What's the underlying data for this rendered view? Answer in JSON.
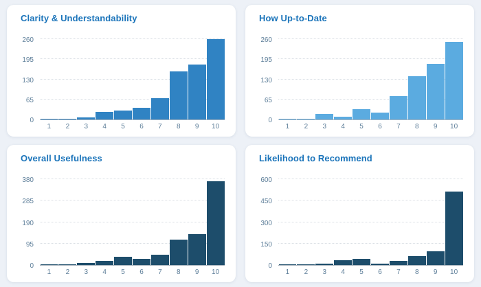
{
  "page": {
    "background_color": "#edf1f7",
    "card_color": "#ffffff",
    "title_color": "#1b74ba",
    "tick_label_color": "#5d7e99"
  },
  "chart_data": [
    {
      "type": "bar",
      "title": "Clarity & Understandability",
      "categories": [
        "1",
        "2",
        "3",
        "4",
        "5",
        "6",
        "7",
        "8",
        "9",
        "10"
      ],
      "values": [
        1,
        3,
        7,
        25,
        29,
        38,
        70,
        155,
        177,
        260
      ],
      "y_ticks": [
        0,
        65,
        130,
        195,
        260
      ],
      "ylim": [
        0,
        260
      ],
      "xlabel": "",
      "ylabel": "",
      "bar_color": "#3083c3",
      "grid": "horizontal-dotted",
      "legend": "none"
    },
    {
      "type": "bar",
      "title": "How Up-to-Date",
      "categories": [
        "1",
        "2",
        "3",
        "4",
        "5",
        "6",
        "7",
        "8",
        "9",
        "10"
      ],
      "values": [
        1,
        2,
        17,
        10,
        33,
        22,
        76,
        140,
        179,
        251
      ],
      "y_ticks": [
        0,
        65,
        130,
        195,
        260
      ],
      "ylim": [
        0,
        260
      ],
      "xlabel": "",
      "ylabel": "",
      "bar_color": "#5babe0",
      "grid": "horizontal-dotted",
      "legend": "none"
    },
    {
      "type": "bar",
      "title": "Overall Usefulness",
      "categories": [
        "1",
        "2",
        "3",
        "4",
        "5",
        "6",
        "7",
        "8",
        "9",
        "10"
      ],
      "values": [
        1,
        1,
        9,
        19,
        38,
        28,
        47,
        114,
        136,
        371
      ],
      "y_ticks": [
        0,
        95,
        190,
        285,
        380
      ],
      "ylim": [
        0,
        380
      ],
      "xlabel": "",
      "ylabel": "",
      "bar_color": "#1d4d6b",
      "grid": "horizontal-dotted",
      "legend": "none"
    },
    {
      "type": "bar",
      "title": "Likelihood to Recommend",
      "categories": [
        "1",
        "2",
        "3",
        "4",
        "5",
        "6",
        "7",
        "8",
        "9",
        "10"
      ],
      "values": [
        3,
        2,
        10,
        34,
        44,
        12,
        30,
        64,
        96,
        512
      ],
      "y_ticks": [
        0,
        150,
        300,
        450,
        600
      ],
      "ylim": [
        0,
        600
      ],
      "xlabel": "",
      "ylabel": "",
      "bar_color": "#1d4d6b",
      "grid": "horizontal-dotted",
      "legend": "none"
    }
  ]
}
